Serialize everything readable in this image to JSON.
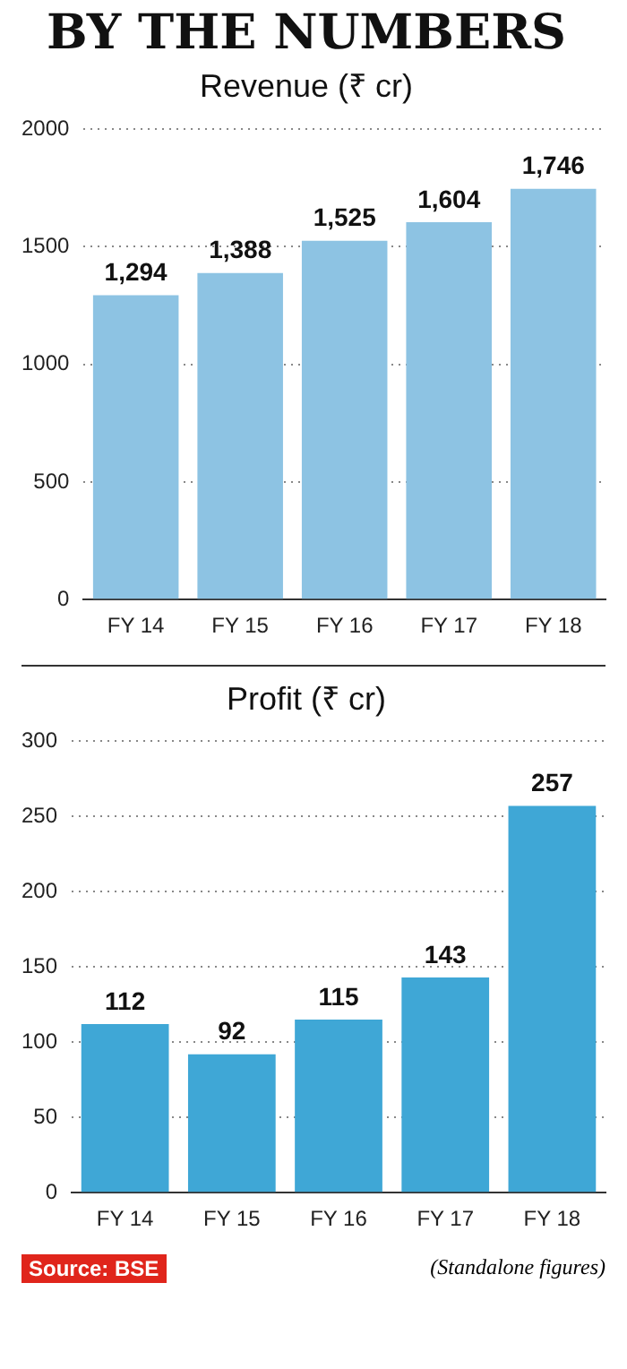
{
  "chart_data": [
    {
      "type": "bar",
      "title": "BY THE NUMBERS",
      "subtitle": "Revenue (₹ cr)",
      "categories": [
        "FY 14",
        "FY 15",
        "FY 16",
        "FY 17",
        "FY 18"
      ],
      "values": [
        1294,
        1388,
        1525,
        1604,
        1746
      ],
      "value_labels": [
        "1,294",
        "1,388",
        "1,525",
        "1,604",
        "1,746"
      ],
      "color": "#8dc3e3",
      "ylim": [
        0,
        2000
      ],
      "yticks": [
        0,
        500,
        1000,
        1500,
        2000
      ],
      "grid": "y"
    },
    {
      "type": "bar",
      "title": "Profit (₹ cr)",
      "categories": [
        "FY 14",
        "FY 15",
        "FY 16",
        "FY 17",
        "FY 18"
      ],
      "values": [
        112,
        92,
        115,
        143,
        257
      ],
      "data_labels": true,
      "color": "#3fa7d6",
      "ylim": [
        0,
        300
      ],
      "yticks": [
        0,
        50,
        100,
        150,
        200,
        250,
        300
      ],
      "grid": "y",
      "annotations": [
        "Source: BSE",
        "(Standalone figures)"
      ]
    }
  ]
}
